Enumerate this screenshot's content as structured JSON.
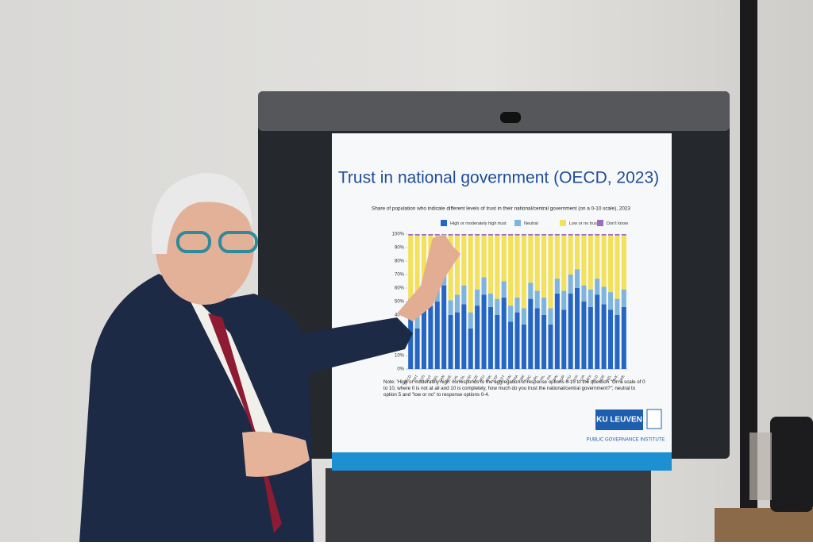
{
  "chart_data": {
    "type": "stacked_bar",
    "title": "Trust in national government (OECD, 2023)",
    "subtitle": "Share of population who indicate different levels of trust in their national/central government (on a 0-10 scale), 2023",
    "categories": [
      "OECD",
      "PRT",
      "AUS",
      "AUT",
      "BEL",
      "CAN",
      "CHE",
      "CHL",
      "COL",
      "CRI",
      "CZE",
      "DEU",
      "DNK",
      "ESP",
      "EST",
      "FIN",
      "FRA",
      "GBR",
      "GRC",
      "IRL",
      "ISL",
      "ITA",
      "JPN",
      "KOR",
      "LTU",
      "LUX",
      "LVA",
      "MEX",
      "NLD",
      "NOR",
      "NZL",
      "SVK",
      "SWE"
    ],
    "series": [
      {
        "name": "High or moderately high trust",
        "color": "#2566c4",
        "values": [
          39,
          30,
          48,
          47,
          50,
          62,
          40,
          42,
          48,
          30,
          47,
          55,
          46,
          40,
          53,
          35,
          42,
          33,
          52,
          45,
          40,
          33,
          56,
          44,
          56,
          60,
          50,
          46,
          55,
          48,
          44,
          40,
          46
        ]
      },
      {
        "name": "Neutral",
        "color": "#7fb4dc",
        "values": [
          13,
          12,
          10,
          12,
          13,
          12,
          11,
          13,
          14,
          12,
          12,
          13,
          10,
          12,
          12,
          12,
          11,
          12,
          12,
          13,
          13,
          12,
          11,
          14,
          14,
          14,
          12,
          13,
          12,
          13,
          13,
          12,
          13
        ]
      },
      {
        "name": "Low or no trust",
        "color": "#f3e15c",
        "values": [
          47,
          57,
          41,
          40,
          36,
          25,
          48,
          44,
          37,
          57,
          40,
          31,
          43,
          47,
          34,
          52,
          46,
          54,
          35,
          41,
          46,
          54,
          32,
          41,
          29,
          25,
          37,
          40,
          32,
          38,
          42,
          47,
          40
        ]
      },
      {
        "name": "Don't know",
        "color": "#9a6cc2",
        "values": [
          1,
          1,
          1,
          1,
          1,
          1,
          1,
          1,
          1,
          1,
          1,
          1,
          1,
          1,
          1,
          1,
          1,
          1,
          1,
          1,
          1,
          1,
          1,
          1,
          1,
          1,
          1,
          1,
          1,
          1,
          1,
          1,
          1
        ]
      }
    ],
    "ylim": [
      0,
      100
    ],
    "yticks": [
      {
        "value": 0,
        "label": "0%"
      },
      {
        "value": 10,
        "label": "10%"
      },
      {
        "value": 20,
        "label": "20%"
      },
      {
        "value": 30,
        "label": "30%"
      },
      {
        "value": 40,
        "label": "40%"
      },
      {
        "value": 50,
        "label": "50%"
      },
      {
        "value": 60,
        "label": "60%"
      },
      {
        "value": 70,
        "label": "70%"
      },
      {
        "value": 80,
        "label": "80%"
      },
      {
        "value": 90,
        "label": "90%"
      },
      {
        "value": 100,
        "label": "100%"
      }
    ],
    "grid": false,
    "legend": "top",
    "note": "Note: 'High or moderately high' corresponds to the aggregation of response options 6-10 to the question \"On a scale of 0 to 10, where 0 is not at all and 10 is completely, how much do you trust the national/central government?\"; neutral to option 5 and \"low or no\" to response options 0-4.",
    "logo": "KU LEUVEN",
    "institute": "PUBLIC GOVERNANCE INSTITUTE"
  }
}
